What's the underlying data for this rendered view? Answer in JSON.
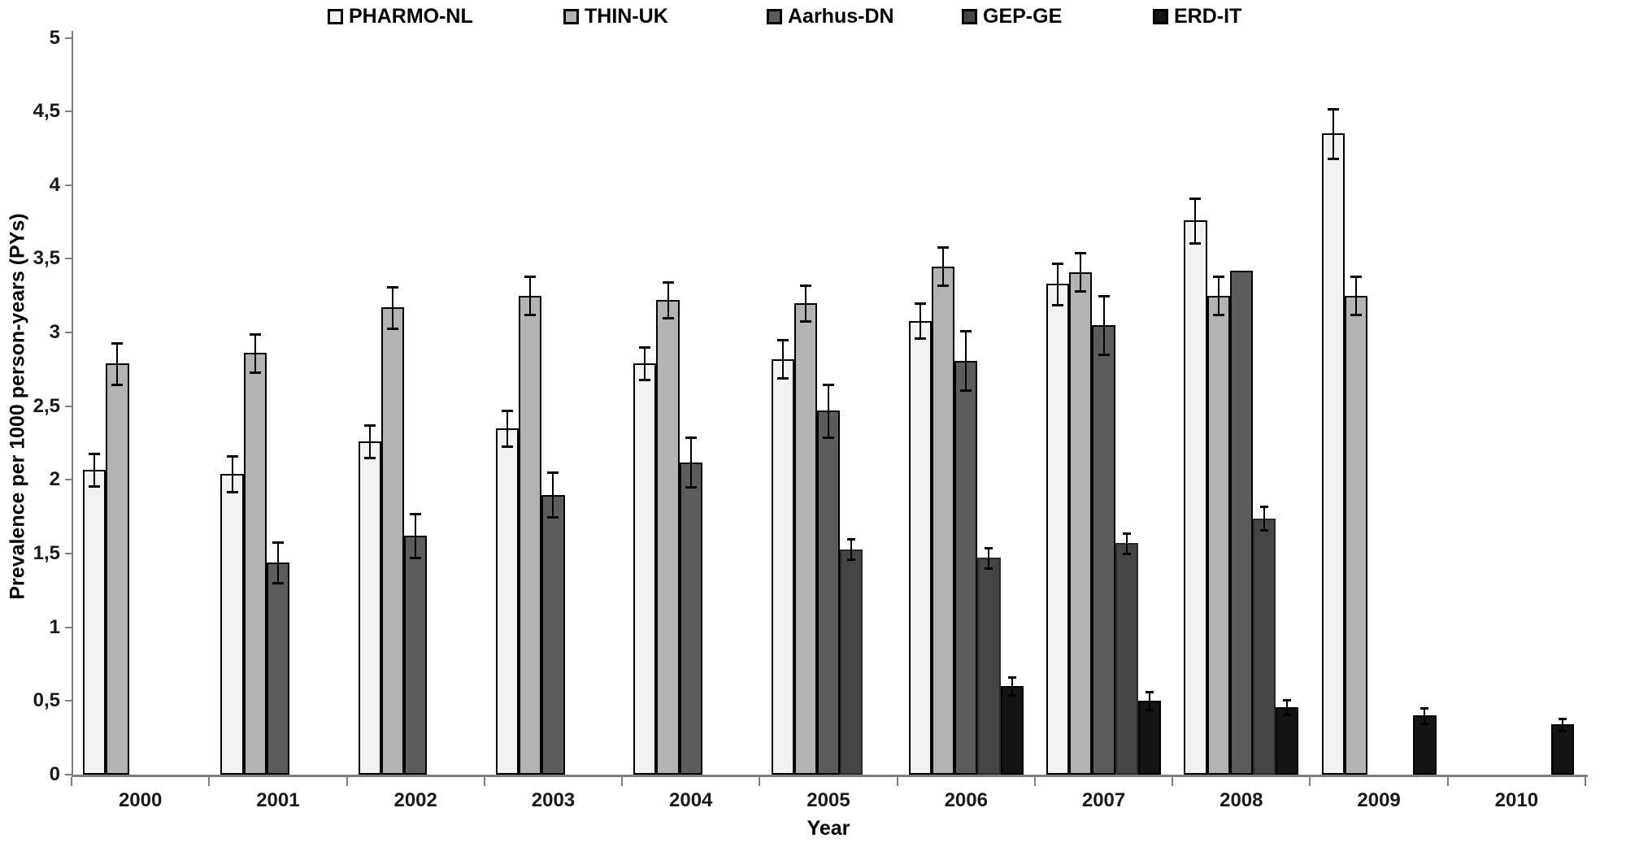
{
  "figure": {
    "y_tick_labels": [
      "0",
      "0,5",
      "1",
      "1,5",
      "2",
      "2,5",
      "3",
      "3,5",
      "4",
      "4,5",
      "5"
    ]
  },
  "chart_data": {
    "type": "bar",
    "title": "",
    "xlabel": "Year",
    "ylabel": "Prevalence per 1000 person-years (PYs)",
    "ylim": [
      0,
      5
    ],
    "y_tick_step": 0.5,
    "grid": false,
    "legend_position": "top",
    "error_bars": true,
    "decimal_separator": ",",
    "categories": [
      "2000",
      "2001",
      "2002",
      "2003",
      "2004",
      "2005",
      "2006",
      "2007",
      "2008",
      "2009",
      "2010"
    ],
    "series": [
      {
        "name": "PHARMO-NL",
        "fill": "#f2f2f2",
        "border": "#000000",
        "values": [
          2.07,
          2.04,
          2.26,
          2.35,
          2.79,
          2.82,
          3.08,
          3.33,
          3.76,
          4.35,
          null
        ],
        "errors": [
          0.11,
          0.12,
          0.11,
          0.12,
          0.11,
          0.13,
          0.12,
          0.14,
          0.15,
          0.17,
          null
        ]
      },
      {
        "name": "THIN-UK",
        "fill": "#b3b3b3",
        "border": "#000000",
        "values": [
          2.79,
          2.86,
          3.17,
          3.25,
          3.22,
          3.2,
          3.45,
          3.41,
          3.25,
          3.25,
          null
        ],
        "errors": [
          0.14,
          0.13,
          0.14,
          0.13,
          0.12,
          0.12,
          0.13,
          0.13,
          0.13,
          0.13,
          null
        ]
      },
      {
        "name": "Aarhus-DN",
        "fill": "#5c5c5c",
        "border": "#000000",
        "values": [
          null,
          1.44,
          1.62,
          1.9,
          2.12,
          2.47,
          2.81,
          3.05,
          3.42,
          null,
          null
        ],
        "errors": [
          null,
          0.14,
          0.15,
          0.15,
          0.17,
          0.18,
          0.2,
          0.2,
          0,
          null,
          null
        ]
      },
      {
        "name": "GEP-GE",
        "fill": "#454545",
        "border": "#2b2b2b",
        "values": [
          null,
          null,
          null,
          null,
          null,
          1.53,
          1.47,
          1.57,
          1.74,
          null,
          null
        ],
        "errors": [
          null,
          null,
          null,
          null,
          null,
          0.07,
          0.07,
          0.07,
          0.08,
          null,
          null
        ]
      },
      {
        "name": "ERD-IT",
        "fill": "#141414",
        "border": "#000000",
        "values": [
          null,
          null,
          null,
          null,
          null,
          null,
          0.6,
          0.5,
          0.46,
          0.4,
          0.34
        ],
        "errors": [
          null,
          null,
          null,
          null,
          null,
          null,
          0.06,
          0.06,
          0.05,
          0.05,
          0.04
        ]
      }
    ]
  }
}
